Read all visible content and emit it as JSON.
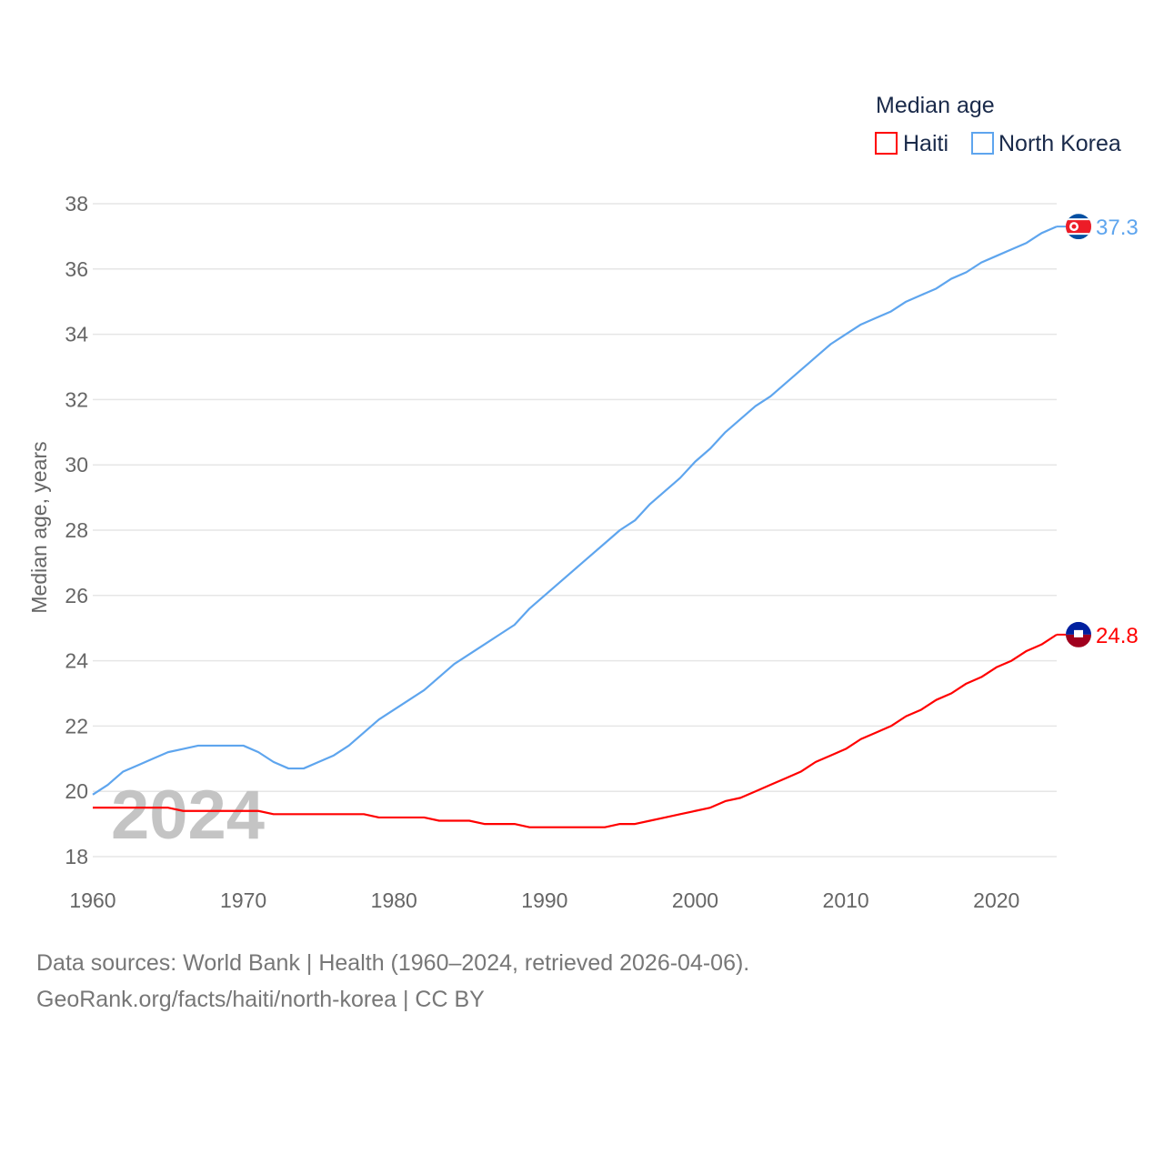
{
  "chart_data": {
    "type": "line",
    "title": "Median age",
    "ylabel": "Median age, years",
    "xlabel": "",
    "ylim": [
      18,
      38
    ],
    "xlim": [
      1960,
      2024
    ],
    "yticks": [
      18,
      20,
      22,
      24,
      26,
      28,
      30,
      32,
      34,
      36,
      38
    ],
    "xticks": [
      1960,
      1970,
      1980,
      1990,
      2000,
      2010,
      2020
    ],
    "grid": true,
    "legend_position": "top-right",
    "watermark_year": "2024",
    "x": [
      1960,
      1961,
      1962,
      1963,
      1964,
      1965,
      1966,
      1967,
      1968,
      1969,
      1970,
      1971,
      1972,
      1973,
      1974,
      1975,
      1976,
      1977,
      1978,
      1979,
      1980,
      1981,
      1982,
      1983,
      1984,
      1985,
      1986,
      1987,
      1988,
      1989,
      1990,
      1991,
      1992,
      1993,
      1994,
      1995,
      1996,
      1997,
      1998,
      1999,
      2000,
      2001,
      2002,
      2003,
      2004,
      2005,
      2006,
      2007,
      2008,
      2009,
      2010,
      2011,
      2012,
      2013,
      2014,
      2015,
      2016,
      2017,
      2018,
      2019,
      2020,
      2021,
      2022,
      2023,
      2024
    ],
    "series": [
      {
        "name": "Haiti",
        "color": "#ff0000",
        "end_label": "24.8",
        "values": [
          19.5,
          19.5,
          19.5,
          19.5,
          19.5,
          19.5,
          19.4,
          19.4,
          19.4,
          19.4,
          19.4,
          19.4,
          19.3,
          19.3,
          19.3,
          19.3,
          19.3,
          19.3,
          19.3,
          19.2,
          19.2,
          19.2,
          19.2,
          19.1,
          19.1,
          19.1,
          19.0,
          19.0,
          19.0,
          18.9,
          18.9,
          18.9,
          18.9,
          18.9,
          18.9,
          19.0,
          19.0,
          19.1,
          19.2,
          19.3,
          19.4,
          19.5,
          19.7,
          19.8,
          20.0,
          20.2,
          20.4,
          20.6,
          20.9,
          21.1,
          21.3,
          21.6,
          21.8,
          22.0,
          22.3,
          22.5,
          22.8,
          23.0,
          23.3,
          23.5,
          23.8,
          24.0,
          24.3,
          24.5,
          24.8
        ]
      },
      {
        "name": "North Korea",
        "color": "#5ea5ee",
        "end_label": "37.3",
        "values": [
          19.9,
          20.2,
          20.6,
          20.8,
          21.0,
          21.2,
          21.3,
          21.4,
          21.4,
          21.4,
          21.4,
          21.2,
          20.9,
          20.7,
          20.7,
          20.9,
          21.1,
          21.4,
          21.8,
          22.2,
          22.5,
          22.8,
          23.1,
          23.5,
          23.9,
          24.2,
          24.5,
          24.8,
          25.1,
          25.6,
          26.0,
          26.4,
          26.8,
          27.2,
          27.6,
          28.0,
          28.3,
          28.8,
          29.2,
          29.6,
          30.1,
          30.5,
          31.0,
          31.4,
          31.8,
          32.1,
          32.5,
          32.9,
          33.3,
          33.7,
          34.0,
          34.3,
          34.5,
          34.7,
          35.0,
          35.2,
          35.4,
          35.7,
          35.9,
          36.2,
          36.4,
          36.6,
          36.8,
          37.1,
          37.3
        ]
      }
    ]
  },
  "footer": {
    "line1": "Data sources: World Bank | Health (1960–2024, retrieved 2026-04-06).",
    "line2": "GeoRank.org/facts/haiti/north-korea | CC BY"
  }
}
